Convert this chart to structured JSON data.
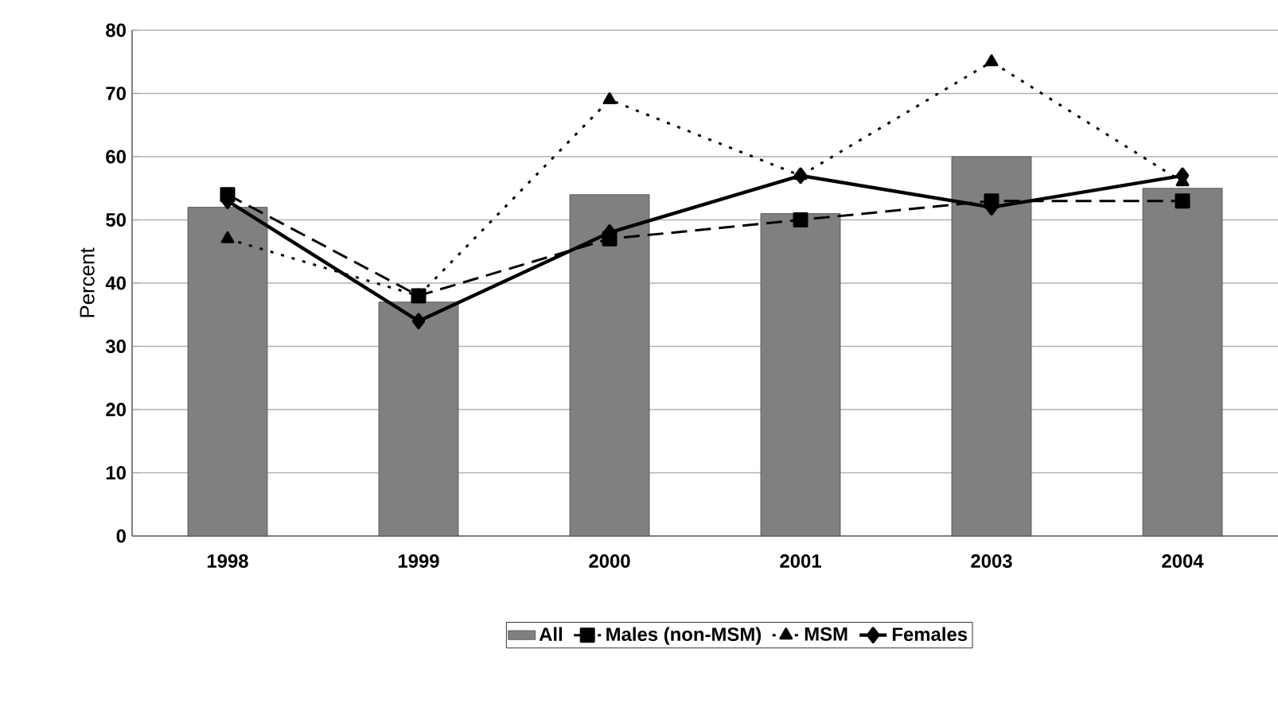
{
  "chart_data": {
    "type": "bar",
    "ylabel": "Percent",
    "categories": [
      "1998",
      "1999",
      "2000",
      "2001",
      "2003",
      "2004"
    ],
    "series": [
      {
        "name": "All",
        "color": "#808080",
        "values": [
          52,
          37,
          54,
          51,
          60,
          55
        ]
      },
      {
        "name": "Males (non-MSM)",
        "type": "line",
        "color": "#000000",
        "marker": "square",
        "line_style": "dashed",
        "values": [
          54,
          38,
          47,
          50,
          53,
          53
        ]
      },
      {
        "name": "MSM",
        "type": "line",
        "color": "#000000",
        "marker": "triangle",
        "line_style": "dotted",
        "values": [
          47,
          38,
          69,
          57,
          75,
          56
        ]
      },
      {
        "name": "Females",
        "type": "line",
        "color": "#000000",
        "marker": "diamond",
        "line_style": "solid",
        "values": [
          53,
          34,
          48,
          57,
          52,
          57
        ]
      }
    ],
    "ylim": [
      0,
      80
    ],
    "yticks": [
      0,
      10,
      20,
      30,
      40,
      50,
      60,
      70,
      80
    ],
    "grid": "y",
    "legend": "bottom"
  }
}
